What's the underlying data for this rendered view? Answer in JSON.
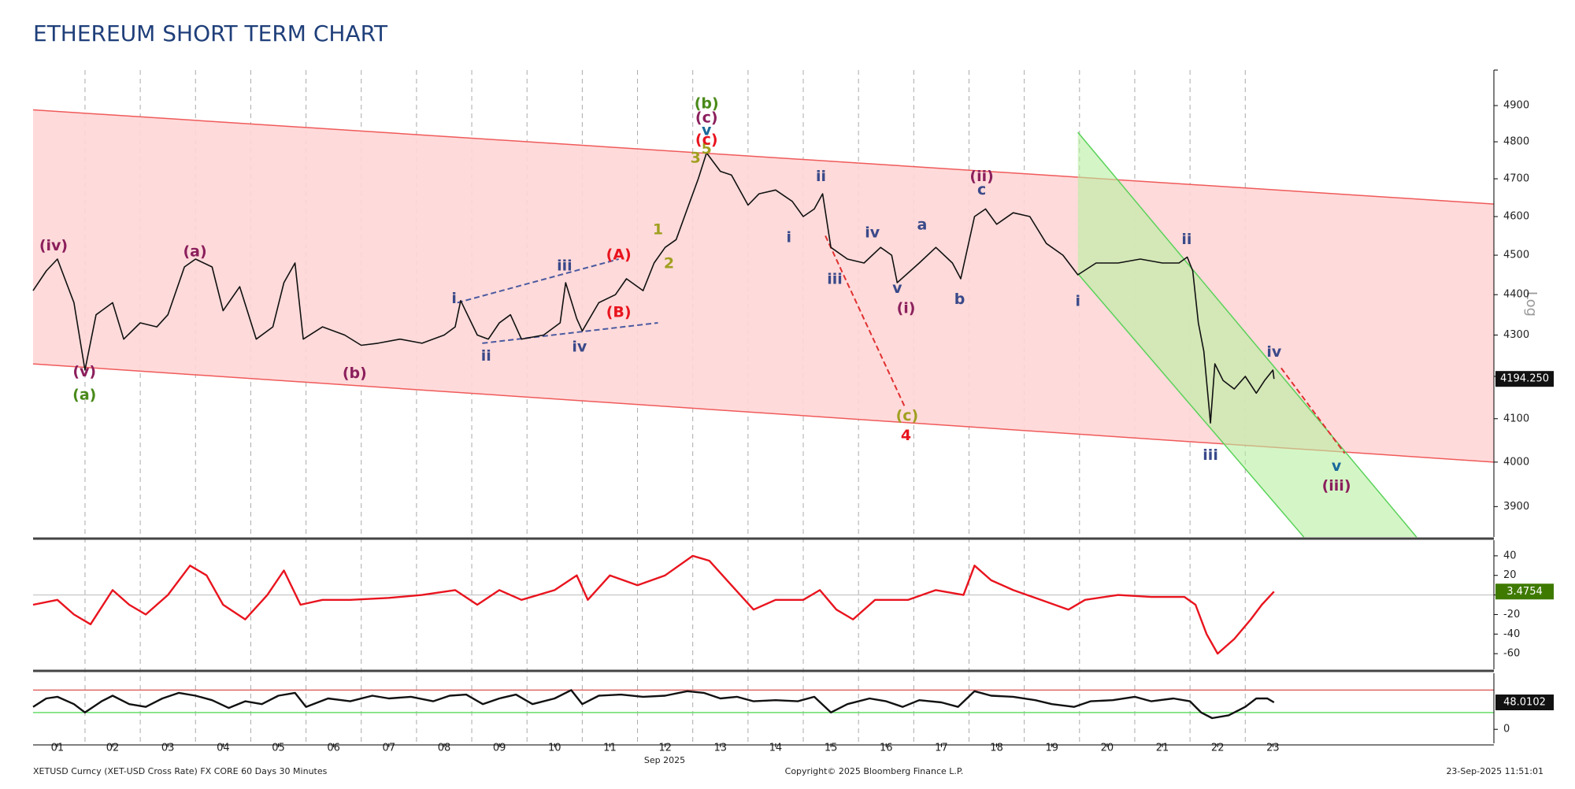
{
  "chart_data": [
    {
      "type": "line",
      "title": "ETHEREUM SHORT TERM CHART",
      "y_label": "Log",
      "log_scale": true,
      "xlim": [
        0.56,
        27.0
      ],
      "ylim": [
        3833,
        5000
      ],
      "yticks": [
        3900,
        4000,
        4100,
        4200,
        4300,
        4400,
        4500,
        4600,
        4700,
        4800,
        4900
      ],
      "x": [
        0.56,
        0.8,
        1.0,
        1.3,
        1.5,
        1.7,
        2.0,
        2.2,
        2.5,
        2.8,
        3.0,
        3.3,
        3.5,
        3.8,
        4.0,
        4.3,
        4.6,
        4.9,
        5.1,
        5.3,
        5.45,
        5.8,
        6.2,
        6.5,
        6.8,
        7.2,
        7.6,
        8.0,
        8.2,
        8.3,
        8.6,
        8.8,
        9.0,
        9.2,
        9.4,
        9.8,
        10.1,
        10.2,
        10.4,
        10.5,
        10.8,
        11.1,
        11.3,
        11.6,
        11.8,
        12.0,
        12.2,
        12.4,
        12.6,
        12.75,
        13.0,
        13.2,
        13.5,
        13.7,
        14.0,
        14.3,
        14.5,
        14.7,
        14.85,
        15.0,
        15.3,
        15.6,
        15.9,
        16.1,
        16.2,
        16.6,
        16.9,
        17.2,
        17.35,
        17.6,
        17.8,
        18.0,
        18.3,
        18.6,
        18.9,
        19.2,
        19.47,
        19.8,
        20.2,
        20.6,
        21.0,
        21.3,
        21.45,
        21.55,
        21.65,
        21.75,
        21.87,
        21.95,
        22.1,
        22.3,
        22.5,
        22.7,
        22.85,
        23.0,
        23.02
      ],
      "series": [
        {
          "color": "#111111",
          "values": [
            4410,
            4460,
            4490,
            4380,
            4215,
            4350,
            4380,
            4290,
            4330,
            4320,
            4350,
            4470,
            4490,
            4470,
            4360,
            4420,
            4290,
            4320,
            4430,
            4480,
            4290,
            4320,
            4300,
            4275,
            4280,
            4290,
            4280,
            4300,
            4320,
            4385,
            4300,
            4290,
            4330,
            4350,
            4290,
            4300,
            4330,
            4430,
            4340,
            4310,
            4380,
            4400,
            4440,
            4410,
            4480,
            4520,
            4540,
            4620,
            4700,
            4770,
            4720,
            4710,
            4630,
            4660,
            4670,
            4640,
            4600,
            4620,
            4660,
            4520,
            4490,
            4480,
            4520,
            4500,
            4430,
            4480,
            4520,
            4480,
            4440,
            4600,
            4620,
            4580,
            4610,
            4600,
            4530,
            4500,
            4450,
            4480,
            4480,
            4490,
            4480,
            4480,
            4495,
            4460,
            4330,
            4260,
            4090,
            4230,
            4190,
            4170,
            4200,
            4160,
            4190,
            4215,
            4194
          ]
        }
      ],
      "last_value_label": "4194.250",
      "channels": [
        {
          "fill": "#ffd6d6",
          "stroke": "#f05a5a",
          "upper": {
            "x": [
              0.56,
              27.0
            ],
            "y": [
              4888,
              4633
            ]
          },
          "lower": {
            "x": [
              0.56,
              27.0
            ],
            "y": [
              4230,
              4000
            ]
          }
        },
        {
          "fill": "#b8f0a0",
          "stroke": "#5ad25a",
          "upper": {
            "x": [
              19.47,
              25.6
            ],
            "y": [
              4826,
              3833
            ]
          },
          "lower": {
            "x": [
              19.47,
              23.56
            ],
            "y": [
              4453,
              3833
            ]
          }
        }
      ],
      "trendlines": [
        {
          "color": "#4a5aa0",
          "x": [
            8.24,
            11.16
          ],
          "y": [
            4380,
            4490
          ]
        },
        {
          "color": "#4a5aa0",
          "x": [
            8.69,
            11.87
          ],
          "y": [
            4280,
            4330
          ]
        },
        {
          "color": "#e03030",
          "x": [
            14.9,
            16.33
          ],
          "y": [
            4550,
            4130
          ]
        },
        {
          "color": "#e03030",
          "x": [
            23.15,
            24.3
          ],
          "y": [
            4220,
            4020
          ]
        }
      ],
      "annotations": [
        {
          "text": "(iv)",
          "x": 0.93,
          "y": 4523,
          "color": "#8b1f5c"
        },
        {
          "text": "(v)",
          "x": 1.49,
          "y": 4210,
          "color": "#8b1f5c"
        },
        {
          "text": "(a)",
          "x": 1.49,
          "y": 4155,
          "color": "#4a8a1a"
        },
        {
          "text": "(a)",
          "x": 3.49,
          "y": 4508,
          "color": "#8b1f5c"
        },
        {
          "text": "(b)",
          "x": 6.38,
          "y": 4207,
          "color": "#8b1f5c"
        },
        {
          "text": "i",
          "x": 8.18,
          "y": 4390,
          "color": "#3a4a8a"
        },
        {
          "text": "ii",
          "x": 8.76,
          "y": 4248,
          "color": "#3a4a8a"
        },
        {
          "text": "iii",
          "x": 10.18,
          "y": 4472,
          "color": "#3a4a8a"
        },
        {
          "text": "iv",
          "x": 10.45,
          "y": 4270,
          "color": "#3a4a8a"
        },
        {
          "text": "(A)",
          "x": 11.16,
          "y": 4500,
          "color": "#e8141e"
        },
        {
          "text": "(B)",
          "x": 11.16,
          "y": 4355,
          "color": "#e8141e"
        },
        {
          "text": "1",
          "x": 11.87,
          "y": 4565,
          "color": "#a0a020"
        },
        {
          "text": "2",
          "x": 12.07,
          "y": 4478,
          "color": "#a0a020"
        },
        {
          "text": "3",
          "x": 12.55,
          "y": 4755,
          "color": "#a0a020"
        },
        {
          "text": "5",
          "x": 12.75,
          "y": 4780,
          "color": "#a0a020"
        },
        {
          "text": "(c)",
          "x": 12.75,
          "y": 4805,
          "color": "#e8141e"
        },
        {
          "text": "v",
          "x": 12.75,
          "y": 4830,
          "color": "#1a6a9a"
        },
        {
          "text": "(c)",
          "x": 12.75,
          "y": 4865,
          "color": "#8b1f5c"
        },
        {
          "text": "(b)",
          "x": 12.75,
          "y": 4905,
          "color": "#4a8a1a"
        },
        {
          "text": "ii",
          "x": 14.82,
          "y": 4705,
          "color": "#3a4a8a"
        },
        {
          "text": "i",
          "x": 14.24,
          "y": 4545,
          "color": "#3a4a8a"
        },
        {
          "text": "iv",
          "x": 15.75,
          "y": 4557,
          "color": "#3a4a8a"
        },
        {
          "text": "iii",
          "x": 15.07,
          "y": 4438,
          "color": "#3a4a8a"
        },
        {
          "text": "a",
          "x": 16.65,
          "y": 4577,
          "color": "#3a4a8a"
        },
        {
          "text": "v",
          "x": 16.2,
          "y": 4415,
          "color": "#3a4a8a"
        },
        {
          "text": "(i)",
          "x": 16.36,
          "y": 4365,
          "color": "#8b1f5c"
        },
        {
          "text": "(ii)",
          "x": 17.73,
          "y": 4705,
          "color": "#8b1f5c"
        },
        {
          "text": "c",
          "x": 17.73,
          "y": 4670,
          "color": "#3a4a8a"
        },
        {
          "text": "b",
          "x": 17.33,
          "y": 4388,
          "color": "#3a4a8a"
        },
        {
          "text": "i",
          "x": 19.47,
          "y": 4383,
          "color": "#3a4a8a"
        },
        {
          "text": "ii",
          "x": 21.44,
          "y": 4540,
          "color": "#3a4a8a"
        },
        {
          "text": "iv",
          "x": 23.02,
          "y": 4258,
          "color": "#3a4a8a"
        },
        {
          "text": "iii",
          "x": 21.87,
          "y": 4015,
          "color": "#3a4a8a"
        },
        {
          "text": "v",
          "x": 24.15,
          "y": 3990,
          "color": "#1a6a9a"
        },
        {
          "text": "(iii)",
          "x": 24.15,
          "y": 3945,
          "color": "#8b1f5c"
        },
        {
          "text": "(c)",
          "x": 16.38,
          "y": 4106,
          "color": "#a0a020"
        },
        {
          "text": "4",
          "x": 16.36,
          "y": 4060,
          "color": "#e8141e"
        }
      ]
    },
    {
      "type": "line",
      "xlim": [
        0.56,
        27.0
      ],
      "ylim": [
        -76,
        56
      ],
      "yticks": [
        -60,
        -40,
        -20,
        0,
        20,
        40
      ],
      "x": [
        0.56,
        1.0,
        1.3,
        1.6,
        2.0,
        2.3,
        2.6,
        3.0,
        3.4,
        3.7,
        4.0,
        4.4,
        4.8,
        5.1,
        5.4,
        5.8,
        6.3,
        7.0,
        7.6,
        8.2,
        8.6,
        9.0,
        9.4,
        10.0,
        10.4,
        10.6,
        11.0,
        11.5,
        12.0,
        12.5,
        12.8,
        13.2,
        13.6,
        14.0,
        14.5,
        14.8,
        15.1,
        15.4,
        15.8,
        16.4,
        16.9,
        17.4,
        17.6,
        17.9,
        18.3,
        18.8,
        19.3,
        19.6,
        20.2,
        20.8,
        21.4,
        21.6,
        21.8,
        22.0,
        22.3,
        22.6,
        22.8,
        23.02
      ],
      "series": [
        {
          "color": "#e8141e",
          "values": [
            -10,
            -5,
            -20,
            -30,
            5,
            -10,
            -20,
            0,
            30,
            20,
            -10,
            -25,
            0,
            25,
            -10,
            -5,
            -5,
            -3,
            0,
            5,
            -10,
            5,
            -5,
            5,
            20,
            -5,
            20,
            10,
            20,
            40,
            35,
            10,
            -15,
            -5,
            -5,
            5,
            -15,
            -25,
            -5,
            -5,
            5,
            0,
            30,
            15,
            5,
            -5,
            -15,
            -5,
            0,
            -2,
            -2,
            -10,
            -40,
            -60,
            -45,
            -25,
            -10,
            3.4754
          ]
        }
      ]
    },
    {
      "type": "line",
      "xlim": [
        0.56,
        27.0
      ],
      "ylim": [
        -25,
        100
      ],
      "yticks": [
        0
      ],
      "levels": [
        {
          "value": 70,
          "color": "#e06666"
        },
        {
          "value": 30,
          "color": "#66dd66"
        }
      ],
      "xticks": [
        {
          "value": 1,
          "label": "01"
        },
        {
          "value": 2,
          "label": "02"
        },
        {
          "value": 3,
          "label": "03"
        },
        {
          "value": 4,
          "label": "04"
        },
        {
          "value": 5,
          "label": "05"
        },
        {
          "value": 6,
          "label": "06"
        },
        {
          "value": 7,
          "label": "07"
        },
        {
          "value": 8,
          "label": "08"
        },
        {
          "value": 9,
          "label": "09"
        },
        10,
        11,
        12,
        13,
        14,
        15,
        16,
        17,
        18,
        19,
        20,
        21,
        22,
        23
      ],
      "x_label": "Sep 2025",
      "x": [
        0.56,
        0.8,
        1.0,
        1.3,
        1.5,
        1.8,
        2.0,
        2.3,
        2.6,
        2.9,
        3.2,
        3.5,
        3.8,
        4.1,
        4.4,
        4.7,
        5.0,
        5.3,
        5.5,
        5.9,
        6.3,
        6.7,
        7.0,
        7.4,
        7.8,
        8.1,
        8.4,
        8.7,
        9.0,
        9.3,
        9.6,
        10.0,
        10.3,
        10.5,
        10.8,
        11.2,
        11.6,
        12.0,
        12.4,
        12.7,
        13.0,
        13.3,
        13.6,
        14.0,
        14.4,
        14.7,
        15.0,
        15.3,
        15.7,
        16.0,
        16.3,
        16.6,
        17.0,
        17.3,
        17.6,
        17.9,
        18.3,
        18.7,
        19.0,
        19.4,
        19.7,
        20.1,
        20.5,
        20.8,
        21.2,
        21.5,
        21.7,
        21.9,
        22.2,
        22.5,
        22.7,
        22.9,
        23.02
      ],
      "series": [
        {
          "color": "#111111",
          "values": [
            40,
            55,
            58,
            45,
            30,
            50,
            60,
            45,
            40,
            55,
            65,
            60,
            52,
            38,
            50,
            45,
            60,
            65,
            40,
            55,
            50,
            60,
            55,
            58,
            50,
            60,
            62,
            45,
            55,
            62,
            45,
            55,
            70,
            45,
            60,
            62,
            58,
            60,
            68,
            65,
            55,
            58,
            50,
            52,
            50,
            58,
            30,
            45,
            55,
            50,
            40,
            52,
            48,
            40,
            68,
            60,
            58,
            52,
            45,
            40,
            50,
            52,
            58,
            50,
            55,
            50,
            30,
            20,
            25,
            40,
            55,
            55,
            48.0102
          ]
        }
      ]
    }
  ],
  "footer": {
    "left": "XETUSD Curncy (XET-USD Cross Rate) FX CORE 60 Days 30 Minutes",
    "center": "Copyright© 2025 Bloomberg Finance L.P.",
    "right": "23-Sep-2025 11:51:01"
  }
}
